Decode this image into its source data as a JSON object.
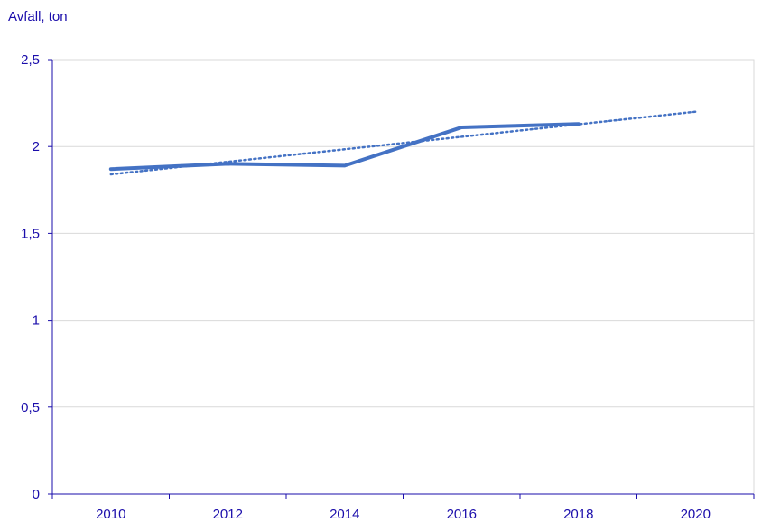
{
  "chart_data": {
    "type": "line",
    "ylabel": "Avfall, ton",
    "xlabel": "",
    "title": "",
    "x_ticks": [
      "2010",
      "2012",
      "2014",
      "2016",
      "2018",
      "2020"
    ],
    "y_ticks": [
      "0",
      "0,5",
      "1",
      "1,5",
      "2",
      "2,5"
    ],
    "ylim": [
      0,
      2.5
    ],
    "xlim": [
      2009,
      2021
    ],
    "grid": true,
    "series": [
      {
        "style": "solid",
        "color": "#4472c4",
        "x": [
          2010,
          2012,
          2014,
          2016,
          2018
        ],
        "values": [
          1.87,
          1.9,
          1.89,
          2.11,
          2.13
        ]
      },
      {
        "style": "dotted",
        "color": "#4472c4",
        "x": [
          2010,
          2020
        ],
        "values": [
          1.84,
          2.2
        ]
      }
    ],
    "colors": {
      "axis": "#1a0dab",
      "grid": "#d9d9d9",
      "text": "#1a0dab"
    }
  }
}
